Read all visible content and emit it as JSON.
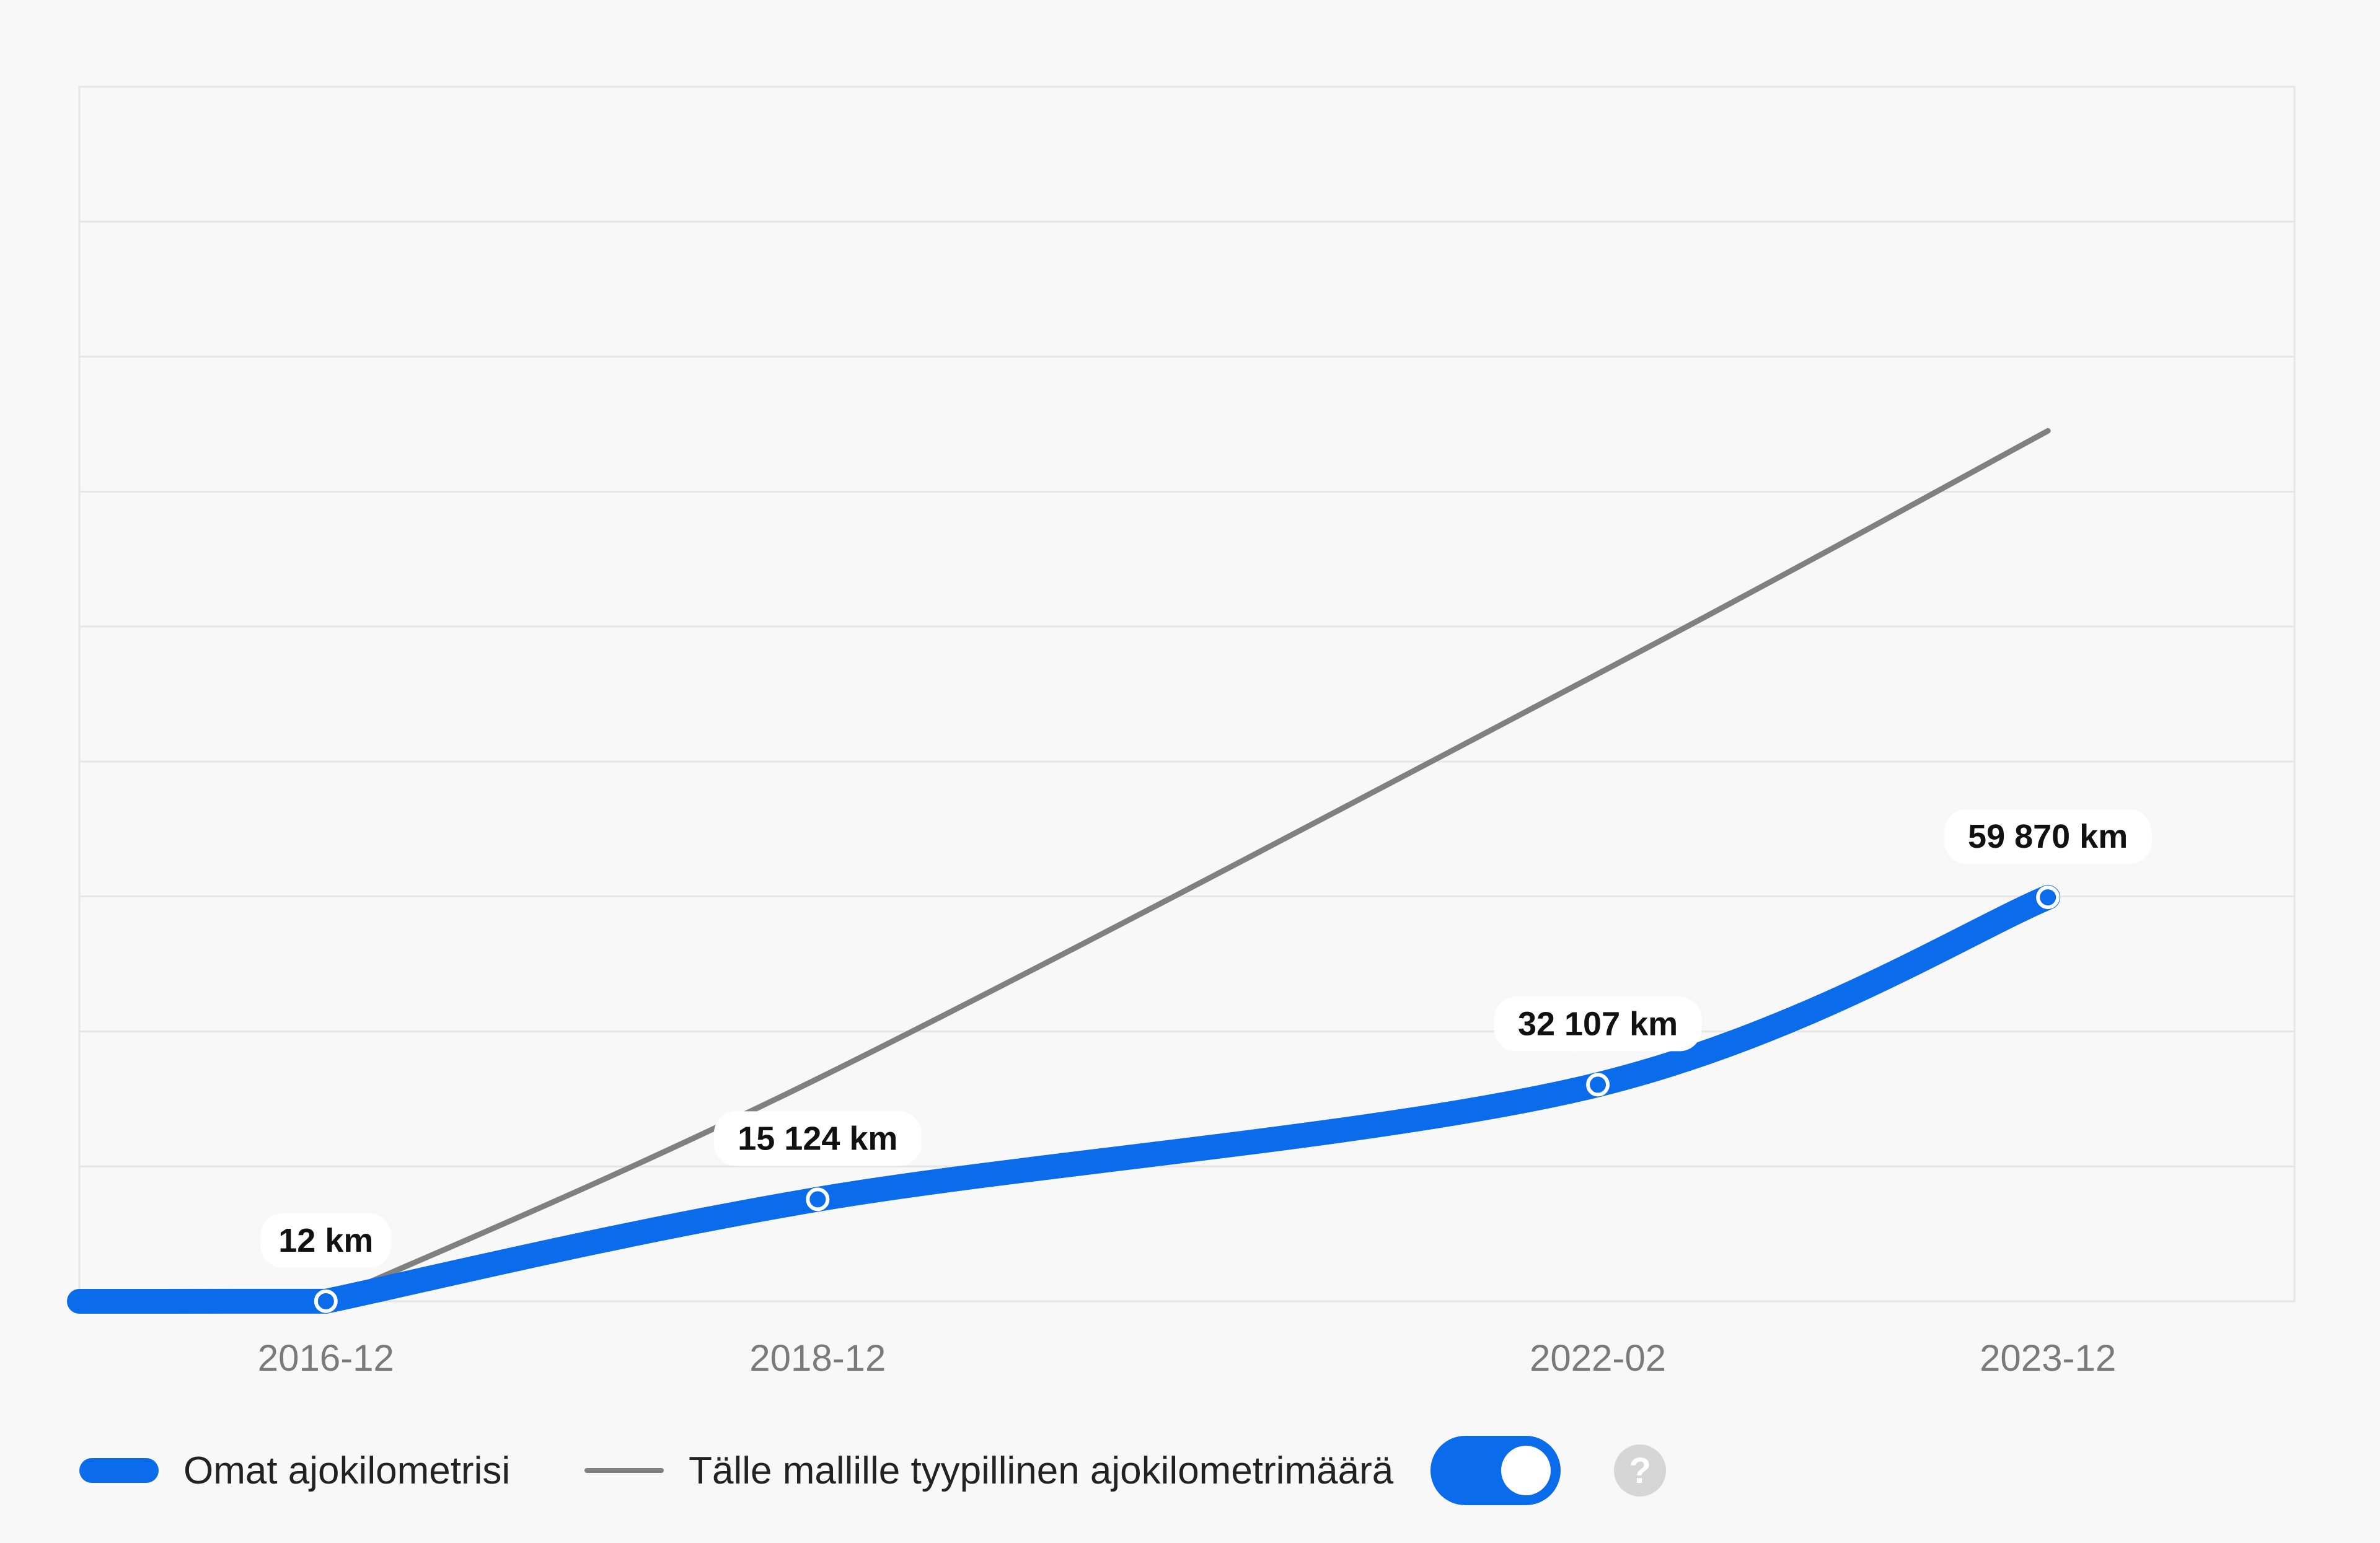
{
  "colors": {
    "own": "#0a6cea",
    "typical": "#808080",
    "grid": "#e6e6e6",
    "help_icon": "#d6d6d6"
  },
  "chart_data": {
    "type": "line",
    "x": [
      "2016-12",
      "2018-12",
      "2022-02",
      "2023-12"
    ],
    "x_start": "2015-12",
    "grid": true,
    "legend_placement": "bottom-left",
    "series": [
      {
        "name": "Omat ajokilometrisi",
        "values": [
          12,
          15124,
          32107,
          59870
        ],
        "start_value": 0,
        "labels": [
          "12 km",
          "15 124 km",
          "32 107 km",
          "59 870 km"
        ]
      },
      {
        "name": "Tälle mallille tyypillinen ajokilometrimäärä",
        "values": [
          0,
          33000,
          93000,
          129000
        ]
      }
    ]
  },
  "legend": {
    "own_label": "Omat ajokilometrisi",
    "typical_label": "Tälle mallille tyypillinen ajokilometrimäärä",
    "toggle_on": true,
    "help_icon": "question-mark-icon",
    "help_glyph": "?"
  }
}
